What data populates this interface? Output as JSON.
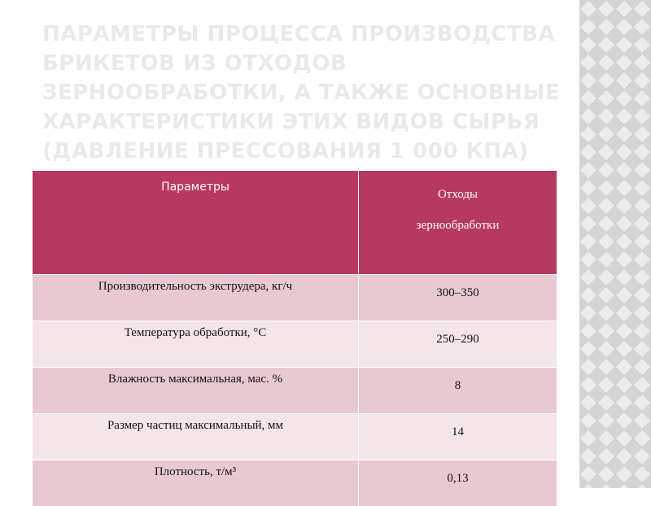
{
  "slide": {
    "title_lines": [
      "ПАРАМЕТРЫ ПРОЦЕССА ПРОИЗВОДСТВА",
      "БРИКЕТОВ ИЗ ОТХОДОВ",
      "ЗЕРНООБРАБОТКИ, А ТАКЖЕ ОСНОВНЫЕ",
      "ХАРАКТЕРИСТИКИ ЭТИХ ВИДОВ СЫРЬЯ",
      "(ДАВЛЕНИЕ ПРЕССОВАНИЯ 1 000 КПА)"
    ],
    "table": {
      "header": {
        "col1": "Параметры",
        "col2_lines": [
          "Отходы",
          "зернообработки"
        ]
      },
      "rows": [
        [
          "Производительность экструдера, кг/ч",
          "300–350"
        ],
        [
          "Температура обработки, °С",
          "250–290"
        ],
        [
          "Влажность максимальная, мас. %",
          "8"
        ],
        [
          "Размер частиц максимальный, мм",
          "14"
        ],
        [
          "Плотность, т/м³",
          "0,13"
        ]
      ]
    }
  }
}
